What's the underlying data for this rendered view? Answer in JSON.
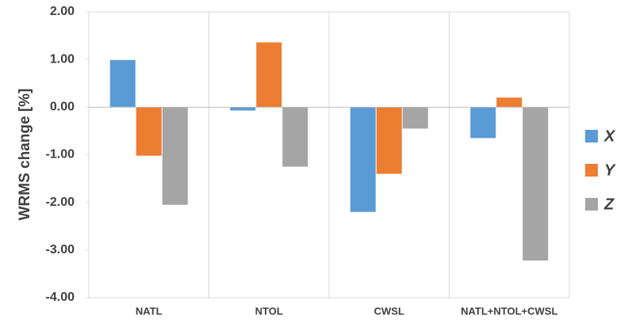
{
  "chart_data": {
    "type": "bar",
    "y_label": "WRMS change [%]",
    "categories": [
      "NATL",
      "NTOL",
      "CWSL",
      "NATL+NTOL+CWSL"
    ],
    "series": [
      {
        "name": "X",
        "color": "#5b9bd5",
        "values": [
          0.99,
          -0.07,
          -2.2,
          -0.65
        ]
      },
      {
        "name": "Y",
        "color": "#ed7d31",
        "values": [
          -1.02,
          1.36,
          -1.4,
          0.2
        ]
      },
      {
        "name": "Z",
        "color": "#a5a5a5",
        "values": [
          -2.05,
          -1.25,
          -0.45,
          -3.22
        ]
      }
    ],
    "ylim": [
      -4,
      2
    ],
    "yticks": [
      {
        "value": -4,
        "label": "-4.00"
      },
      {
        "value": -3,
        "label": "-3.00"
      },
      {
        "value": -2,
        "label": "-2.00"
      },
      {
        "value": -1,
        "label": "-1.00"
      },
      {
        "value": 0,
        "label": "0.00"
      },
      {
        "value": 1,
        "label": "1.00"
      },
      {
        "value": 2,
        "label": "2.00"
      }
    ],
    "legend": "right"
  }
}
